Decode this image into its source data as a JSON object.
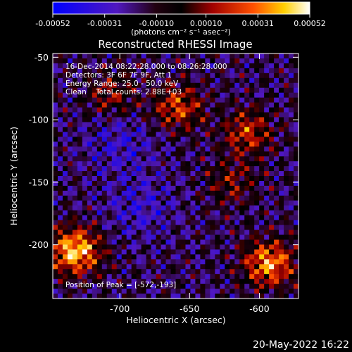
{
  "figure": {
    "title": "Reconstructed RHESSI Image",
    "footer_date": "20-May-2022 16:22",
    "annotations": [
      "16-Dec-2014 08:22:28.000 to 08:26:28.000",
      "Detectors: 3F 6F 7F 9F, Att 1",
      "Energy Range: 25.0 - 50.0 keV",
      "Clean    Total counts: 2.88E+03"
    ],
    "peak_label": "Position of Peak = [-572,-193]"
  },
  "colorbar": {
    "min": -0.00052,
    "max": 0.00052,
    "tick_labels": [
      "-0.00052",
      "-0.00031",
      "-0.00010",
      "0.00010",
      "0.00031",
      "0.00052"
    ],
    "unit_label": "(photons cm⁻² s⁻¹ asec⁻²)"
  },
  "chart_data": {
    "type": "heatmap",
    "title": "Reconstructed RHESSI Image",
    "xlabel": "Heliocentric X (arcsec)",
    "ylabel": "Heliocentric Y (arcsec)",
    "xlim": [
      -748,
      -572
    ],
    "ylim": [
      -243,
      -47
    ],
    "x_ticks": [
      -700,
      -650,
      -600
    ],
    "y_ticks": [
      -50,
      -100,
      -150,
      -200
    ],
    "x_tick_labels": [
      "-700",
      "-650",
      "-600"
    ],
    "y_tick_labels": [
      "-50",
      "-100",
      "-150",
      "-200"
    ],
    "peak_position": [
      -572,
      -193
    ],
    "bright_regions": [
      {
        "x": -732,
        "y": -205,
        "level": 1.0
      },
      {
        "x": -593,
        "y": -215,
        "level": 0.85
      },
      {
        "x": -658,
        "y": -90,
        "level": 0.6
      },
      {
        "x": -608,
        "y": -110,
        "level": 0.55
      },
      {
        "x": -705,
        "y": -80,
        "level": 0.4
      },
      {
        "x": -620,
        "y": -150,
        "level": 0.35
      }
    ],
    "dark_regions": [
      {
        "x": -686,
        "y": -170,
        "level": 0.3
      },
      {
        "x": -700,
        "y": -118,
        "level": 0.3
      }
    ]
  }
}
